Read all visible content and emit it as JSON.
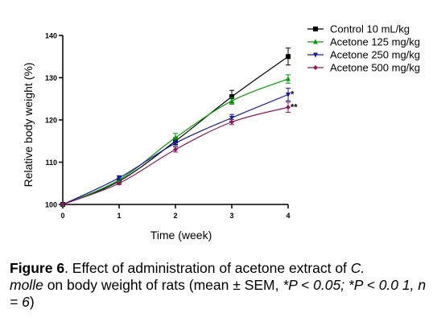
{
  "chart_data": {
    "type": "line",
    "x": [
      0,
      1,
      2,
      3,
      4
    ],
    "xlabel": "Time (week)",
    "ylabel": "Relative body weight (%)",
    "xlim": [
      0,
      4
    ],
    "ylim": [
      100,
      140
    ],
    "xticks": [
      "0",
      "1",
      "2",
      "3",
      "4"
    ],
    "yticks": [
      "100",
      "110",
      "120",
      "130",
      "140"
    ],
    "grid": false,
    "legend_position": "top-right",
    "series": [
      {
        "name": "Control 10 mL/kg",
        "color": "#000000",
        "marker": "square",
        "values": [
          100,
          105.5,
          115,
          125.5,
          135
        ],
        "errors": [
          0,
          0.5,
          0.8,
          1.5,
          2.0
        ]
      },
      {
        "name": "Acetone 125 mg/kg",
        "color": "#00a000",
        "marker": "triangle-up",
        "values": [
          100,
          105.8,
          115.8,
          124.5,
          129.7
        ],
        "errors": [
          0,
          0.5,
          1.0,
          0.8,
          1.0
        ]
      },
      {
        "name": "Acetone 250 mg/kg",
        "color": "#1a1aa0",
        "marker": "triangle-down",
        "values": [
          100,
          106.3,
          114.5,
          120.5,
          126
        ],
        "errors": [
          0,
          0.5,
          0.6,
          0.8,
          1.5
        ]
      },
      {
        "name": "Acetone 500 mg/kg",
        "color": "#8b1a5a",
        "marker": "diamond",
        "values": [
          100,
          105,
          113,
          119.5,
          123
        ],
        "errors": [
          0,
          0.3,
          0.6,
          0.6,
          1.2
        ]
      }
    ],
    "annotations": [
      {
        "text": "*",
        "x": 4,
        "y": 126
      },
      {
        "text": "**",
        "x": 4,
        "y": 123
      }
    ]
  },
  "caption": {
    "label": "Figure 6",
    "text1": ". Effect of administration of acetone extract of ",
    "species1": "C.",
    "species2": "molle",
    "text2": " on body weight of rats (mean ± SEM, ",
    "stat": "*P < 0.05; *P < 0.0 1, n = 6",
    "text3": ")"
  }
}
